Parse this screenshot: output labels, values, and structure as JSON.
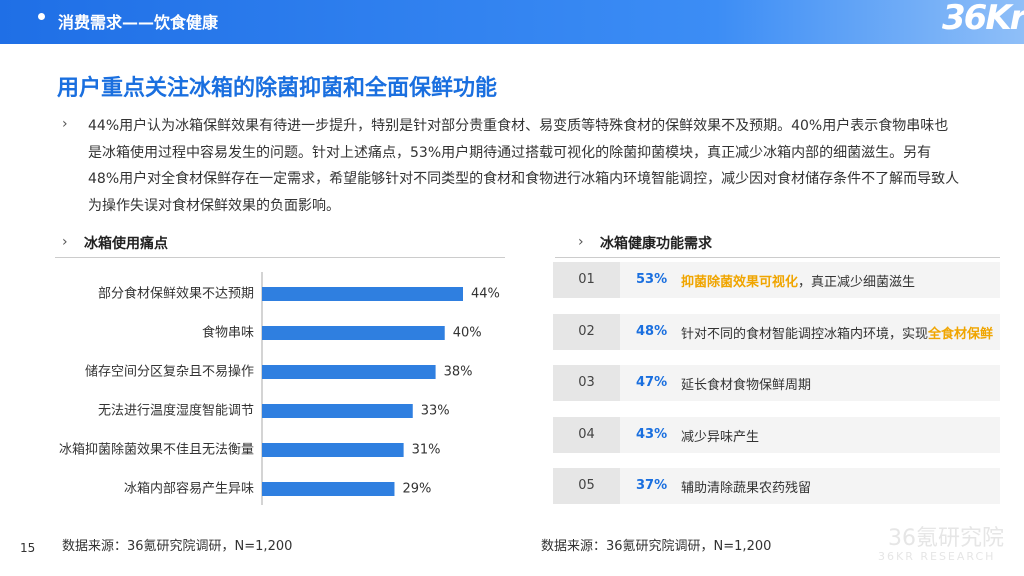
{
  "header": {
    "section": "消费需求——饮食健康",
    "logo": "36Kr"
  },
  "title": "用户重点关注冰箱的除菌抑菌和全面保鲜功能",
  "bullet": "›",
  "paragraph": "44%用户认为冰箱保鲜效果有待进一步提升，特别是针对部分贵重食材、易变质等特殊食材的保鲜效果不及预期。40%用户表示食物串味也是冰箱使用过程中容易发生的问题。针对上述痛点，53%用户期待通过搭载可视化的除菌抑菌模块，真正减少冰箱内部的细菌滋生。另有48%用户对全食材保鲜存在一定需求，希望能够针对不同类型的食材和食物进行冰箱内环境智能调控，减少因对食材储存条件不了解而导致人为操作失误对食材保鲜效果的负面影响。",
  "chart_data": {
    "type": "bar",
    "orientation": "horizontal",
    "title": "冰箱使用痛点",
    "color": "#2f7fe0",
    "categories": [
      "部分食材保鲜效果不达预期",
      "食物串味",
      "储存空间分区复杂且不易操作",
      "无法进行温度湿度智能调节",
      "冰箱抑菌除菌效果不佳且无法衡量",
      "冰箱内部容易产生异味"
    ],
    "values": [
      44,
      40,
      38,
      33,
      31,
      29
    ],
    "value_labels": [
      "44%",
      "40%",
      "38%",
      "33%",
      "31%",
      "29%"
    ],
    "source": "数据来源：36氪研究院调研，N=1,200"
  },
  "needs": {
    "title": "冰箱健康功能需求",
    "items": [
      {
        "num": "01",
        "pct": "53%",
        "parts": [
          {
            "text": "抑菌除菌效果可视化",
            "em": true
          },
          {
            "text": "，真正减少细菌滋生",
            "em": false
          }
        ]
      },
      {
        "num": "02",
        "pct": "48%",
        "parts": [
          {
            "text": "针对不同的食材智能调控冰箱内环境，实现",
            "em": false
          },
          {
            "text": "全食材保鲜",
            "em": true
          }
        ]
      },
      {
        "num": "03",
        "pct": "47%",
        "parts": [
          {
            "text": "延长食材食物保鲜周期",
            "em": false
          }
        ]
      },
      {
        "num": "04",
        "pct": "43%",
        "parts": [
          {
            "text": "减少异味产生",
            "em": false
          }
        ]
      },
      {
        "num": "05",
        "pct": "37%",
        "parts": [
          {
            "text": "辅助清除蔬果农药残留",
            "em": false
          }
        ]
      }
    ],
    "source": "数据来源：36氪研究院调研，N=1,200"
  },
  "page_number": "15",
  "watermark": {
    "main": "36氪研究院",
    "sub": "36KR RESEARCH"
  }
}
